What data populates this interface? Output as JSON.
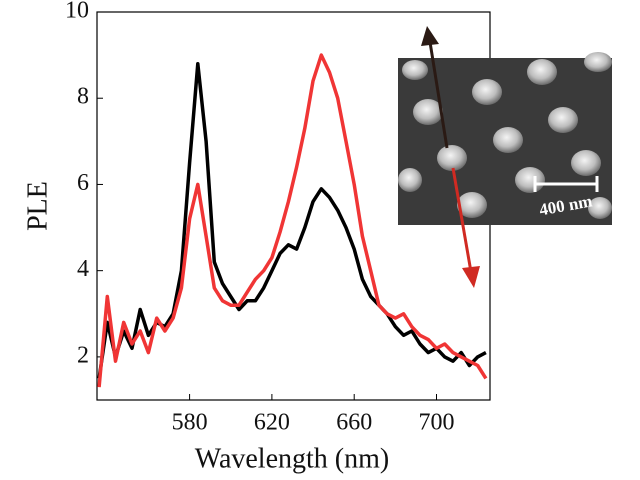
{
  "chart_data": {
    "type": "line",
    "x": [
      536,
      540,
      544,
      548,
      552,
      556,
      560,
      564,
      568,
      572,
      576,
      580,
      584,
      588,
      592,
      596,
      600,
      604,
      608,
      612,
      616,
      620,
      624,
      628,
      632,
      636,
      640,
      644,
      648,
      652,
      656,
      660,
      664,
      668,
      672,
      676,
      680,
      684,
      688,
      692,
      696,
      700,
      704,
      708,
      712,
      716,
      720,
      724
    ],
    "series": [
      {
        "color": "#000000",
        "values": [
          1.5,
          2.8,
          2.0,
          2.6,
          2.2,
          3.1,
          2.5,
          2.8,
          2.7,
          3.0,
          4.0,
          6.5,
          8.8,
          7.0,
          4.2,
          3.7,
          3.4,
          3.1,
          3.3,
          3.3,
          3.6,
          4.0,
          4.4,
          4.6,
          4.5,
          5.0,
          5.6,
          5.9,
          5.7,
          5.4,
          5.0,
          4.5,
          3.8,
          3.4,
          3.2,
          3.0,
          2.7,
          2.5,
          2.6,
          2.3,
          2.1,
          2.2,
          2.0,
          1.9,
          2.1,
          1.8,
          2.0,
          2.1
        ]
      },
      {
        "color": "#f03535",
        "values": [
          1.3,
          3.4,
          1.9,
          2.8,
          2.3,
          2.6,
          2.1,
          2.9,
          2.6,
          2.9,
          3.6,
          5.2,
          6.0,
          4.8,
          3.6,
          3.3,
          3.2,
          3.2,
          3.5,
          3.8,
          4.0,
          4.3,
          4.9,
          5.6,
          6.4,
          7.3,
          8.4,
          9.0,
          8.6,
          8.0,
          7.0,
          6.0,
          4.8,
          4.0,
          3.2,
          3.0,
          2.9,
          3.0,
          2.7,
          2.5,
          2.4,
          2.2,
          2.3,
          2.1,
          2.0,
          1.9,
          1.8,
          1.5
        ]
      }
    ],
    "xlabel": "Wavelength (nm)",
    "ylabel": "PLE",
    "xlim": [
      535,
      726
    ],
    "ylim": [
      1,
      10
    ],
    "xticks": [
      580,
      620,
      660,
      700
    ],
    "yticks": [
      2,
      4,
      6,
      8,
      10
    ],
    "inset_label": "400 nm"
  }
}
